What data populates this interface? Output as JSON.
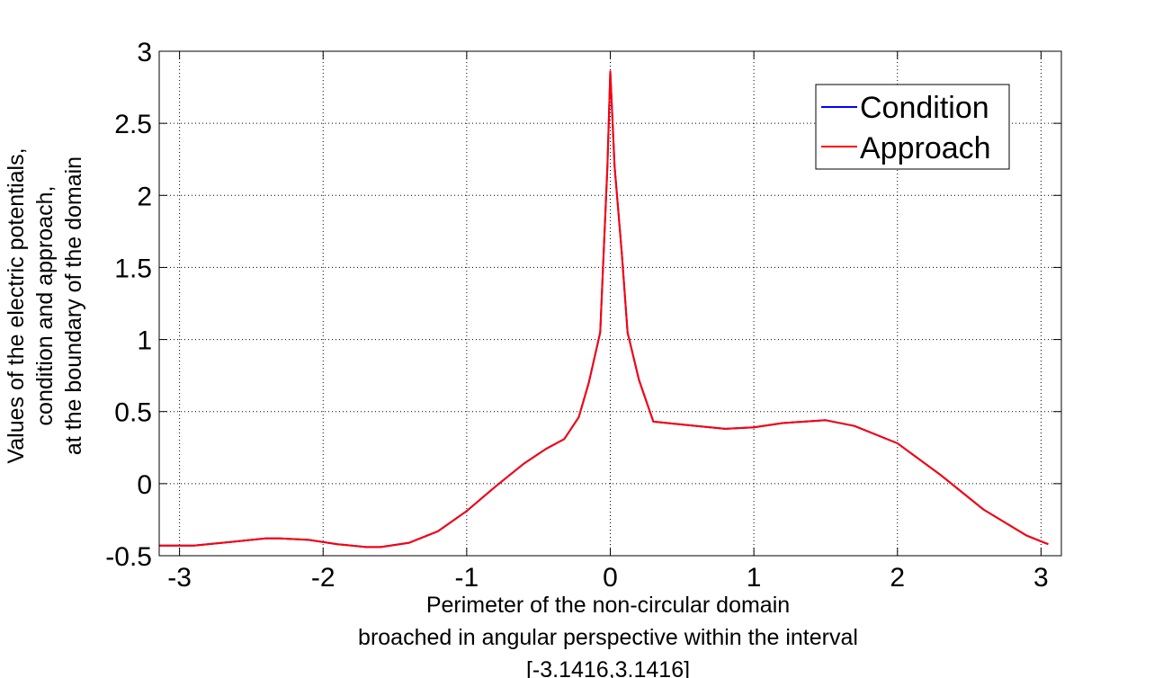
{
  "chart_data": {
    "type": "line",
    "xlabel": [
      "Perimeter of the non-circular domain",
      "broached in angular perspective within the interval",
      "[-3.1416,3.1416]"
    ],
    "ylabel": [
      "Values of the electric potentials,",
      "condition and approach,",
      "at the boundary of the domain"
    ],
    "xlim": [
      -3.1416,
      3.1416
    ],
    "ylim": [
      -0.5,
      3
    ],
    "xticks": [
      -3,
      -2,
      -1,
      0,
      1,
      2,
      3
    ],
    "xtick_labels": [
      "-3",
      "-2",
      "-1",
      "0",
      "1",
      "2",
      "3"
    ],
    "yticks": [
      -0.5,
      0,
      0.5,
      1,
      1.5,
      2,
      2.5,
      3
    ],
    "ytick_labels": [
      "-0.5",
      "0",
      "0.5",
      "1",
      "1.5",
      "2",
      "2.5",
      "3"
    ],
    "grid": true,
    "legend_position": "top-right",
    "colors": {
      "Condition": "#0000ff",
      "Approach": "#ff0000"
    },
    "x": [
      -3.14,
      -2.9,
      -2.6,
      -2.4,
      -2.3,
      -2.1,
      -1.9,
      -1.7,
      -1.6,
      -1.4,
      -1.2,
      -1.0,
      -0.8,
      -0.6,
      -0.45,
      -0.32,
      -0.22,
      -0.15,
      -0.07,
      -0.02,
      0.0,
      0.03,
      0.08,
      0.12,
      0.2,
      0.3,
      0.5,
      0.8,
      1.0,
      1.2,
      1.5,
      1.7,
      2.0,
      2.3,
      2.6,
      2.9,
      3.05
    ],
    "series": [
      {
        "name": "Condition",
        "values": [
          -0.43,
          -0.43,
          -0.4,
          -0.38,
          -0.38,
          -0.39,
          -0.42,
          -0.44,
          -0.44,
          -0.41,
          -0.33,
          -0.19,
          -0.02,
          0.14,
          0.24,
          0.31,
          0.46,
          0.7,
          1.05,
          2.2,
          2.86,
          2.2,
          1.6,
          1.05,
          0.72,
          0.43,
          0.41,
          0.38,
          0.39,
          0.42,
          0.44,
          0.4,
          0.28,
          0.06,
          -0.18,
          -0.36,
          -0.42
        ]
      },
      {
        "name": "Approach",
        "values": [
          -0.43,
          -0.43,
          -0.4,
          -0.38,
          -0.38,
          -0.39,
          -0.42,
          -0.44,
          -0.44,
          -0.41,
          -0.33,
          -0.19,
          -0.02,
          0.14,
          0.24,
          0.31,
          0.46,
          0.7,
          1.05,
          2.2,
          2.86,
          2.2,
          1.6,
          1.05,
          0.72,
          0.43,
          0.41,
          0.38,
          0.39,
          0.42,
          0.44,
          0.4,
          0.28,
          0.06,
          -0.18,
          -0.36,
          -0.42
        ]
      }
    ]
  }
}
